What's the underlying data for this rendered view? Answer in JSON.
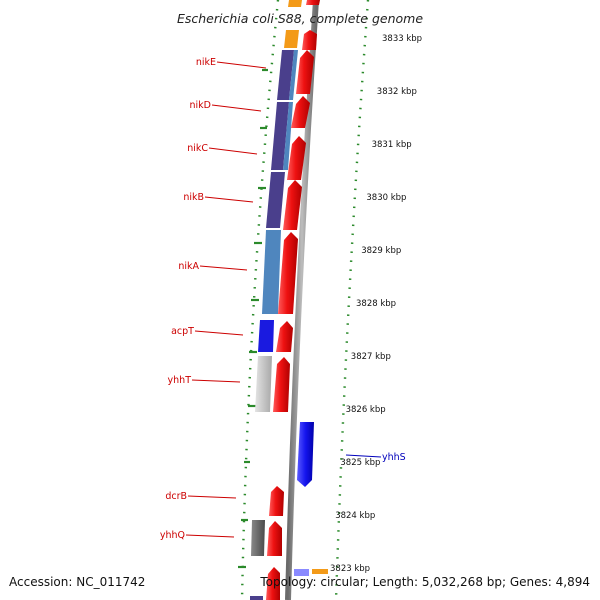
{
  "title": "Escherichia coli S88, complete genome",
  "footer": {
    "accession": "Accession: NC_011742",
    "topology": "Topology: circular; Length: 5,032,268 bp; Genes: 4,894"
  },
  "colors": {
    "forward_gene": "#ee1111",
    "reverse_gene": "#1515ee",
    "nik_reverse": "#4a3f8c",
    "nik_light": "#4f86be",
    "acp_reverse": "#1a1ae0",
    "yhh_reverse": "#c4c4c4",
    "hypothetical": "#6e6e6e",
    "orange_feature": "#f39a18",
    "gc_skew_dots": "#2b8a2b",
    "backbone": "#8a8a8a",
    "label_forward": "#cc0000",
    "label_reverse": "#0000bb"
  },
  "scale": {
    "unit": "kbp",
    "ticks": [
      {
        "kbp": 3833,
        "label": "3833 kbp"
      },
      {
        "kbp": 3832,
        "label": "3832 kbp"
      },
      {
        "kbp": 3831,
        "label": "3831 kbp"
      },
      {
        "kbp": 3830,
        "label": "3830 kbp"
      },
      {
        "kbp": 3829,
        "label": "3829 kbp"
      },
      {
        "kbp": 3828,
        "label": "3828 kbp"
      },
      {
        "kbp": 3827,
        "label": "3827 kbp"
      },
      {
        "kbp": 3826,
        "label": "3826 kbp"
      },
      {
        "kbp": 3825,
        "label": "3825 kbp"
      },
      {
        "kbp": 3824,
        "label": "3824 kbp"
      },
      {
        "kbp": 3823,
        "label": "3823 kbp"
      }
    ]
  },
  "gene_labels": [
    {
      "name": "nikE",
      "strand": "forward"
    },
    {
      "name": "nikD",
      "strand": "forward"
    },
    {
      "name": "nikC",
      "strand": "forward"
    },
    {
      "name": "nikB",
      "strand": "forward"
    },
    {
      "name": "nikA",
      "strand": "forward"
    },
    {
      "name": "acpT",
      "strand": "forward"
    },
    {
      "name": "yhhT",
      "strand": "forward"
    },
    {
      "name": "yhhS",
      "strand": "reverse"
    },
    {
      "name": "dcrB",
      "strand": "forward"
    },
    {
      "name": "yhhQ",
      "strand": "forward"
    }
  ]
}
